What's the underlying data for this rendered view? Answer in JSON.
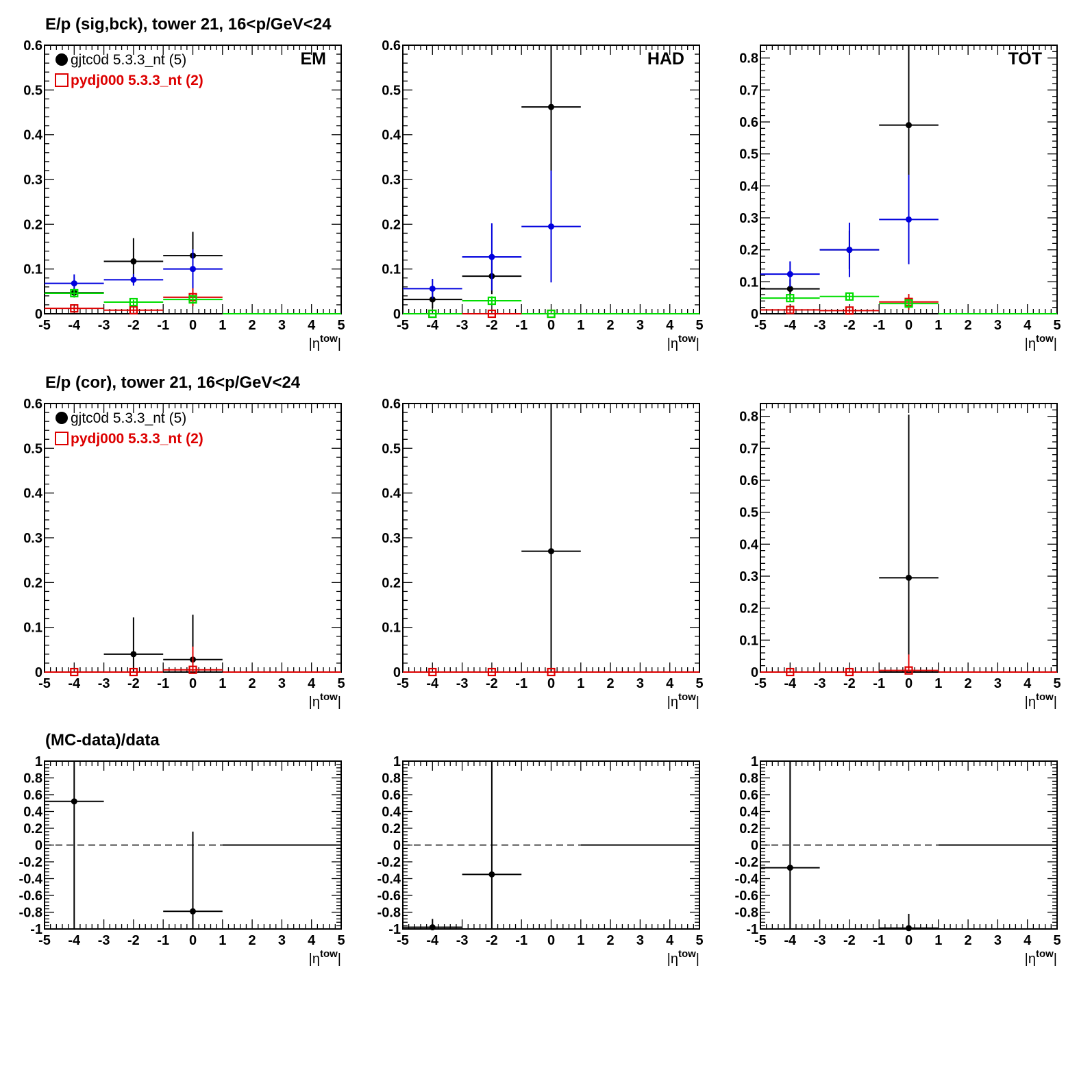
{
  "row_titles": [
    "E/p (sig,bck), tower 21, 16<p/GeV<24",
    "E/p (cor), tower 21, 16<p/GeV<24",
    "(MC-data)/data"
  ],
  "legend": [
    {
      "label": "gjtc0d 5.3.3_nt (5)",
      "color": "#000000",
      "marker": "filled-circle"
    },
    {
      "label": "pydj000 5.3.3_nt (2)",
      "color": "#dd0000",
      "marker": "open-square"
    }
  ],
  "colors": {
    "data": "#000000",
    "mc": "#dd0000",
    "blue": "#0000dd",
    "green": "#00dd00"
  },
  "chart_data": [
    {
      "type": "scatter",
      "row": 0,
      "col": 0,
      "label": "EM",
      "xlabel": "|η^tow|",
      "xlim": [
        -5,
        5
      ],
      "ylim": [
        0,
        0.6
      ],
      "yticks": [
        0,
        0.1,
        0.2,
        0.3,
        0.4,
        0.5,
        0.6
      ],
      "legend": true,
      "series": [
        {
          "color": "black",
          "marker": "dot",
          "points": [
            [
              -4,
              0.047,
              0.01
            ],
            [
              -2,
              0.117,
              0.052
            ],
            [
              0,
              0.13,
              0.053
            ]
          ],
          "flat_from": 1
        },
        {
          "color": "blue",
          "marker": "dot",
          "points": [
            [
              -4,
              0.068,
              0.02
            ],
            [
              -2,
              0.076,
              0.013
            ],
            [
              0,
              0.1,
              0.044
            ]
          ],
          "flat_from": 1
        },
        {
          "color": "red",
          "marker": "square",
          "points": [
            [
              -4,
              0.012,
              0.004
            ],
            [
              -2,
              0.008,
              0.004
            ],
            [
              0,
              0.037,
              0.02
            ]
          ],
          "flat_from": 1
        },
        {
          "color": "green",
          "marker": "square",
          "points": [
            [
              -4,
              0.046,
              0.01
            ],
            [
              -2,
              0.026,
              0.005
            ],
            [
              0,
              0.032,
              0.008
            ]
          ],
          "flat_from": 1
        }
      ]
    },
    {
      "type": "scatter",
      "row": 0,
      "col": 1,
      "label": "HAD",
      "xlabel": "|η^tow|",
      "xlim": [
        -5,
        5
      ],
      "ylim": [
        0,
        0.6
      ],
      "yticks": [
        0,
        0.1,
        0.2,
        0.3,
        0.4,
        0.5,
        0.6
      ],
      "legend": false,
      "series": [
        {
          "color": "black",
          "marker": "dot",
          "points": [
            [
              -4,
              0.032,
              0.02
            ],
            [
              -2,
              0.084,
              0.04
            ],
            [
              0,
              0.462,
              0.2
            ]
          ],
          "flat_from": 1
        },
        {
          "color": "blue",
          "marker": "dot",
          "points": [
            [
              -4,
              0.056,
              0.022
            ],
            [
              -2,
              0.127,
              0.075
            ],
            [
              0,
              0.195,
              0.125
            ]
          ],
          "flat_from": 1
        },
        {
          "color": "red",
          "marker": "square",
          "points": [
            [
              -4,
              0.0,
              0.002
            ],
            [
              -2,
              0.0,
              0.002
            ],
            [
              0,
              0.0,
              0.002
            ]
          ],
          "flat_from": 1
        },
        {
          "color": "green",
          "marker": "square",
          "points": [
            [
              -4,
              0.0,
              0.002
            ],
            [
              -2,
              0.029,
              0.01
            ],
            [
              0,
              0.0,
              0.002
            ]
          ],
          "flat_from": 1
        }
      ]
    },
    {
      "type": "scatter",
      "row": 0,
      "col": 2,
      "label": "TOT",
      "xlabel": "|η^tow|",
      "xlim": [
        -5,
        5
      ],
      "ylim": [
        0,
        0.84
      ],
      "yticks": [
        0,
        0.1,
        0.2,
        0.3,
        0.4,
        0.5,
        0.6,
        0.7,
        0.8
      ],
      "legend": false,
      "series": [
        {
          "color": "black",
          "marker": "dot",
          "points": [
            [
              -4,
              0.078,
              0.03
            ],
            [
              -2,
              0.2,
              0.06
            ],
            [
              0,
              0.59,
              0.25
            ]
          ],
          "flat_from": 1
        },
        {
          "color": "blue",
          "marker": "dot",
          "points": [
            [
              -4,
              0.124,
              0.04
            ],
            [
              -2,
              0.2,
              0.085
            ],
            [
              0,
              0.295,
              0.14
            ]
          ],
          "flat_from": 1
        },
        {
          "color": "red",
          "marker": "square",
          "points": [
            [
              -4,
              0.012,
              0.006
            ],
            [
              -2,
              0.01,
              0.005
            ],
            [
              0,
              0.037,
              0.025
            ]
          ],
          "flat_from": 1
        },
        {
          "color": "green",
          "marker": "square",
          "points": [
            [
              -4,
              0.049,
              0.012
            ],
            [
              -2,
              0.054,
              0.012
            ],
            [
              0,
              0.032,
              0.01
            ]
          ],
          "flat_from": 1
        }
      ]
    },
    {
      "type": "scatter",
      "row": 1,
      "col": 0,
      "xlabel": "|η^tow|",
      "xlim": [
        -5,
        5
      ],
      "ylim": [
        0,
        0.6
      ],
      "yticks": [
        0,
        0.1,
        0.2,
        0.3,
        0.4,
        0.5,
        0.6
      ],
      "legend": true,
      "series": [
        {
          "color": "black",
          "marker": "dot",
          "points": [
            [
              -2,
              0.04,
              0.082
            ],
            [
              0,
              0.028,
              0.1
            ]
          ],
          "flat_from": 1
        },
        {
          "color": "red",
          "marker": "square",
          "points": [
            [
              -4,
              0.0,
              0.0
            ],
            [
              -2,
              0.0,
              0.0
            ],
            [
              0,
              0.005,
              0.052
            ]
          ],
          "flat_from": 1
        }
      ]
    },
    {
      "type": "scatter",
      "row": 1,
      "col": 1,
      "xlabel": "|η^tow|",
      "xlim": [
        -5,
        5
      ],
      "ylim": [
        0,
        0.6
      ],
      "yticks": [
        0,
        0.1,
        0.2,
        0.3,
        0.4,
        0.5,
        0.6
      ],
      "legend": false,
      "series": [
        {
          "color": "black",
          "marker": "dot",
          "points": [
            [
              0,
              0.27,
              0.4
            ]
          ],
          "flat_from": 1
        },
        {
          "color": "red",
          "marker": "square",
          "points": [
            [
              -4,
              0.0,
              0.0
            ],
            [
              -2,
              0.0,
              0.0
            ],
            [
              0,
              0.0,
              0.0
            ]
          ],
          "flat_from": 1
        }
      ]
    },
    {
      "type": "scatter",
      "row": 1,
      "col": 2,
      "xlabel": "|η^tow|",
      "xlim": [
        -5,
        5
      ],
      "ylim": [
        0,
        0.84
      ],
      "yticks": [
        0,
        0.1,
        0.2,
        0.3,
        0.4,
        0.5,
        0.6,
        0.7,
        0.8
      ],
      "legend": false,
      "series": [
        {
          "color": "black",
          "marker": "dot",
          "points": [
            [
              0,
              0.295,
              0.51
            ]
          ],
          "flat_from": 1
        },
        {
          "color": "red",
          "marker": "square",
          "points": [
            [
              -4,
              0.0,
              0.0
            ],
            [
              -2,
              0.0,
              0.0
            ],
            [
              0,
              0.005,
              0.05
            ]
          ],
          "flat_from": 1
        }
      ]
    },
    {
      "type": "scatter",
      "row": 2,
      "col": 0,
      "xlabel": "|η^tow|",
      "xlim": [
        -5,
        5
      ],
      "ylim": [
        -1,
        1
      ],
      "yticks": [
        -1,
        -0.8,
        -0.6,
        -0.4,
        -0.2,
        0,
        0.2,
        0.4,
        0.6,
        0.8,
        1
      ],
      "legend": false,
      "dashed_zero": true,
      "series": [
        {
          "color": "black",
          "marker": "dot",
          "points": [
            [
              -4,
              0.52,
              1.6
            ],
            [
              0,
              -0.79,
              0.95
            ]
          ],
          "flat_from": 1
        }
      ]
    },
    {
      "type": "scatter",
      "row": 2,
      "col": 1,
      "xlabel": "|η^tow|",
      "xlim": [
        -5,
        5
      ],
      "ylim": [
        -1,
        1
      ],
      "yticks": [
        -1,
        -0.8,
        -0.6,
        -0.4,
        -0.2,
        0,
        0.2,
        0.4,
        0.6,
        0.8,
        1
      ],
      "legend": false,
      "dashed_zero": true,
      "series": [
        {
          "color": "black",
          "marker": "dot",
          "points": [
            [
              -4,
              -0.98,
              0.1
            ],
            [
              -2,
              -0.35,
              1.45
            ]
          ],
          "flat_from": 1
        }
      ]
    },
    {
      "type": "scatter",
      "row": 2,
      "col": 2,
      "xlabel": "|η^tow|",
      "xlim": [
        -5,
        5
      ],
      "ylim": [
        -1,
        1
      ],
      "yticks": [
        -1,
        -0.8,
        -0.6,
        -0.4,
        -0.2,
        0,
        0.2,
        0.4,
        0.6,
        0.8,
        1
      ],
      "legend": false,
      "dashed_zero": true,
      "series": [
        {
          "color": "black",
          "marker": "dot",
          "points": [
            [
              -4,
              -0.27,
              1.3
            ],
            [
              0,
              -0.99,
              0.17
            ]
          ],
          "flat_from": 1
        }
      ]
    }
  ]
}
